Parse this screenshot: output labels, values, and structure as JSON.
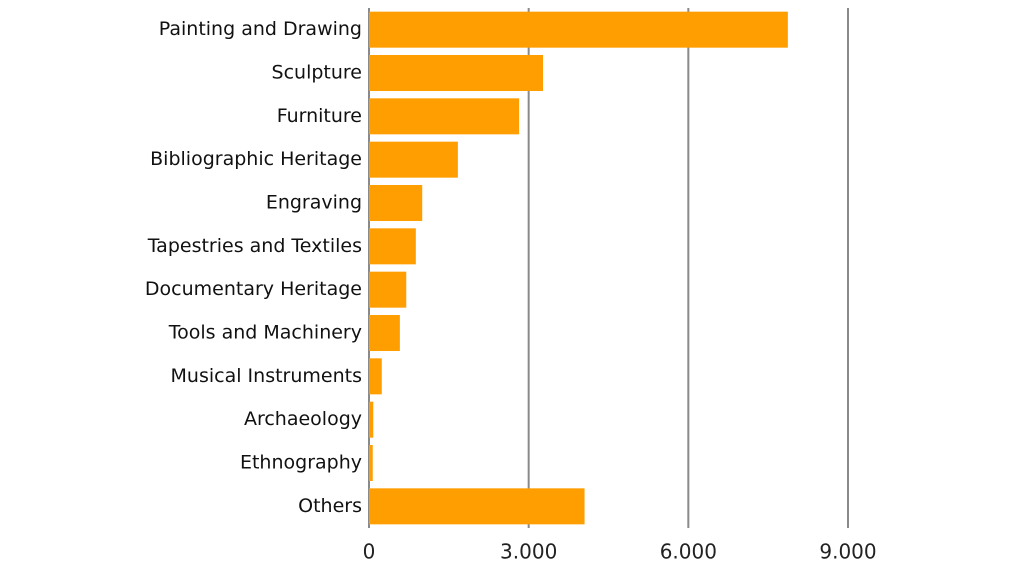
{
  "chart_data": {
    "type": "bar",
    "orientation": "horizontal",
    "categories": [
      "Painting and Drawing",
      "Sculpture",
      "Furniture",
      "Bibliographic Heritage",
      "Engraving",
      "Tapestries and Textiles",
      "Documentary Heritage",
      "Tools and Machinery",
      "Musical Instruments",
      "Archaeology",
      "Ethnography",
      "Others"
    ],
    "values": [
      7870,
      3270,
      2820,
      1670,
      1000,
      880,
      700,
      580,
      240,
      80,
      70,
      4050
    ],
    "color": "#ff9e00",
    "xlim": [
      0,
      9000
    ],
    "xticks": [
      0,
      {
        "value": 3000,
        "label": "3.000"
      },
      {
        "value": 6000,
        "label": "6.000"
      },
      {
        "value": 9000,
        "label": "9.000"
      }
    ],
    "grid": true
  }
}
